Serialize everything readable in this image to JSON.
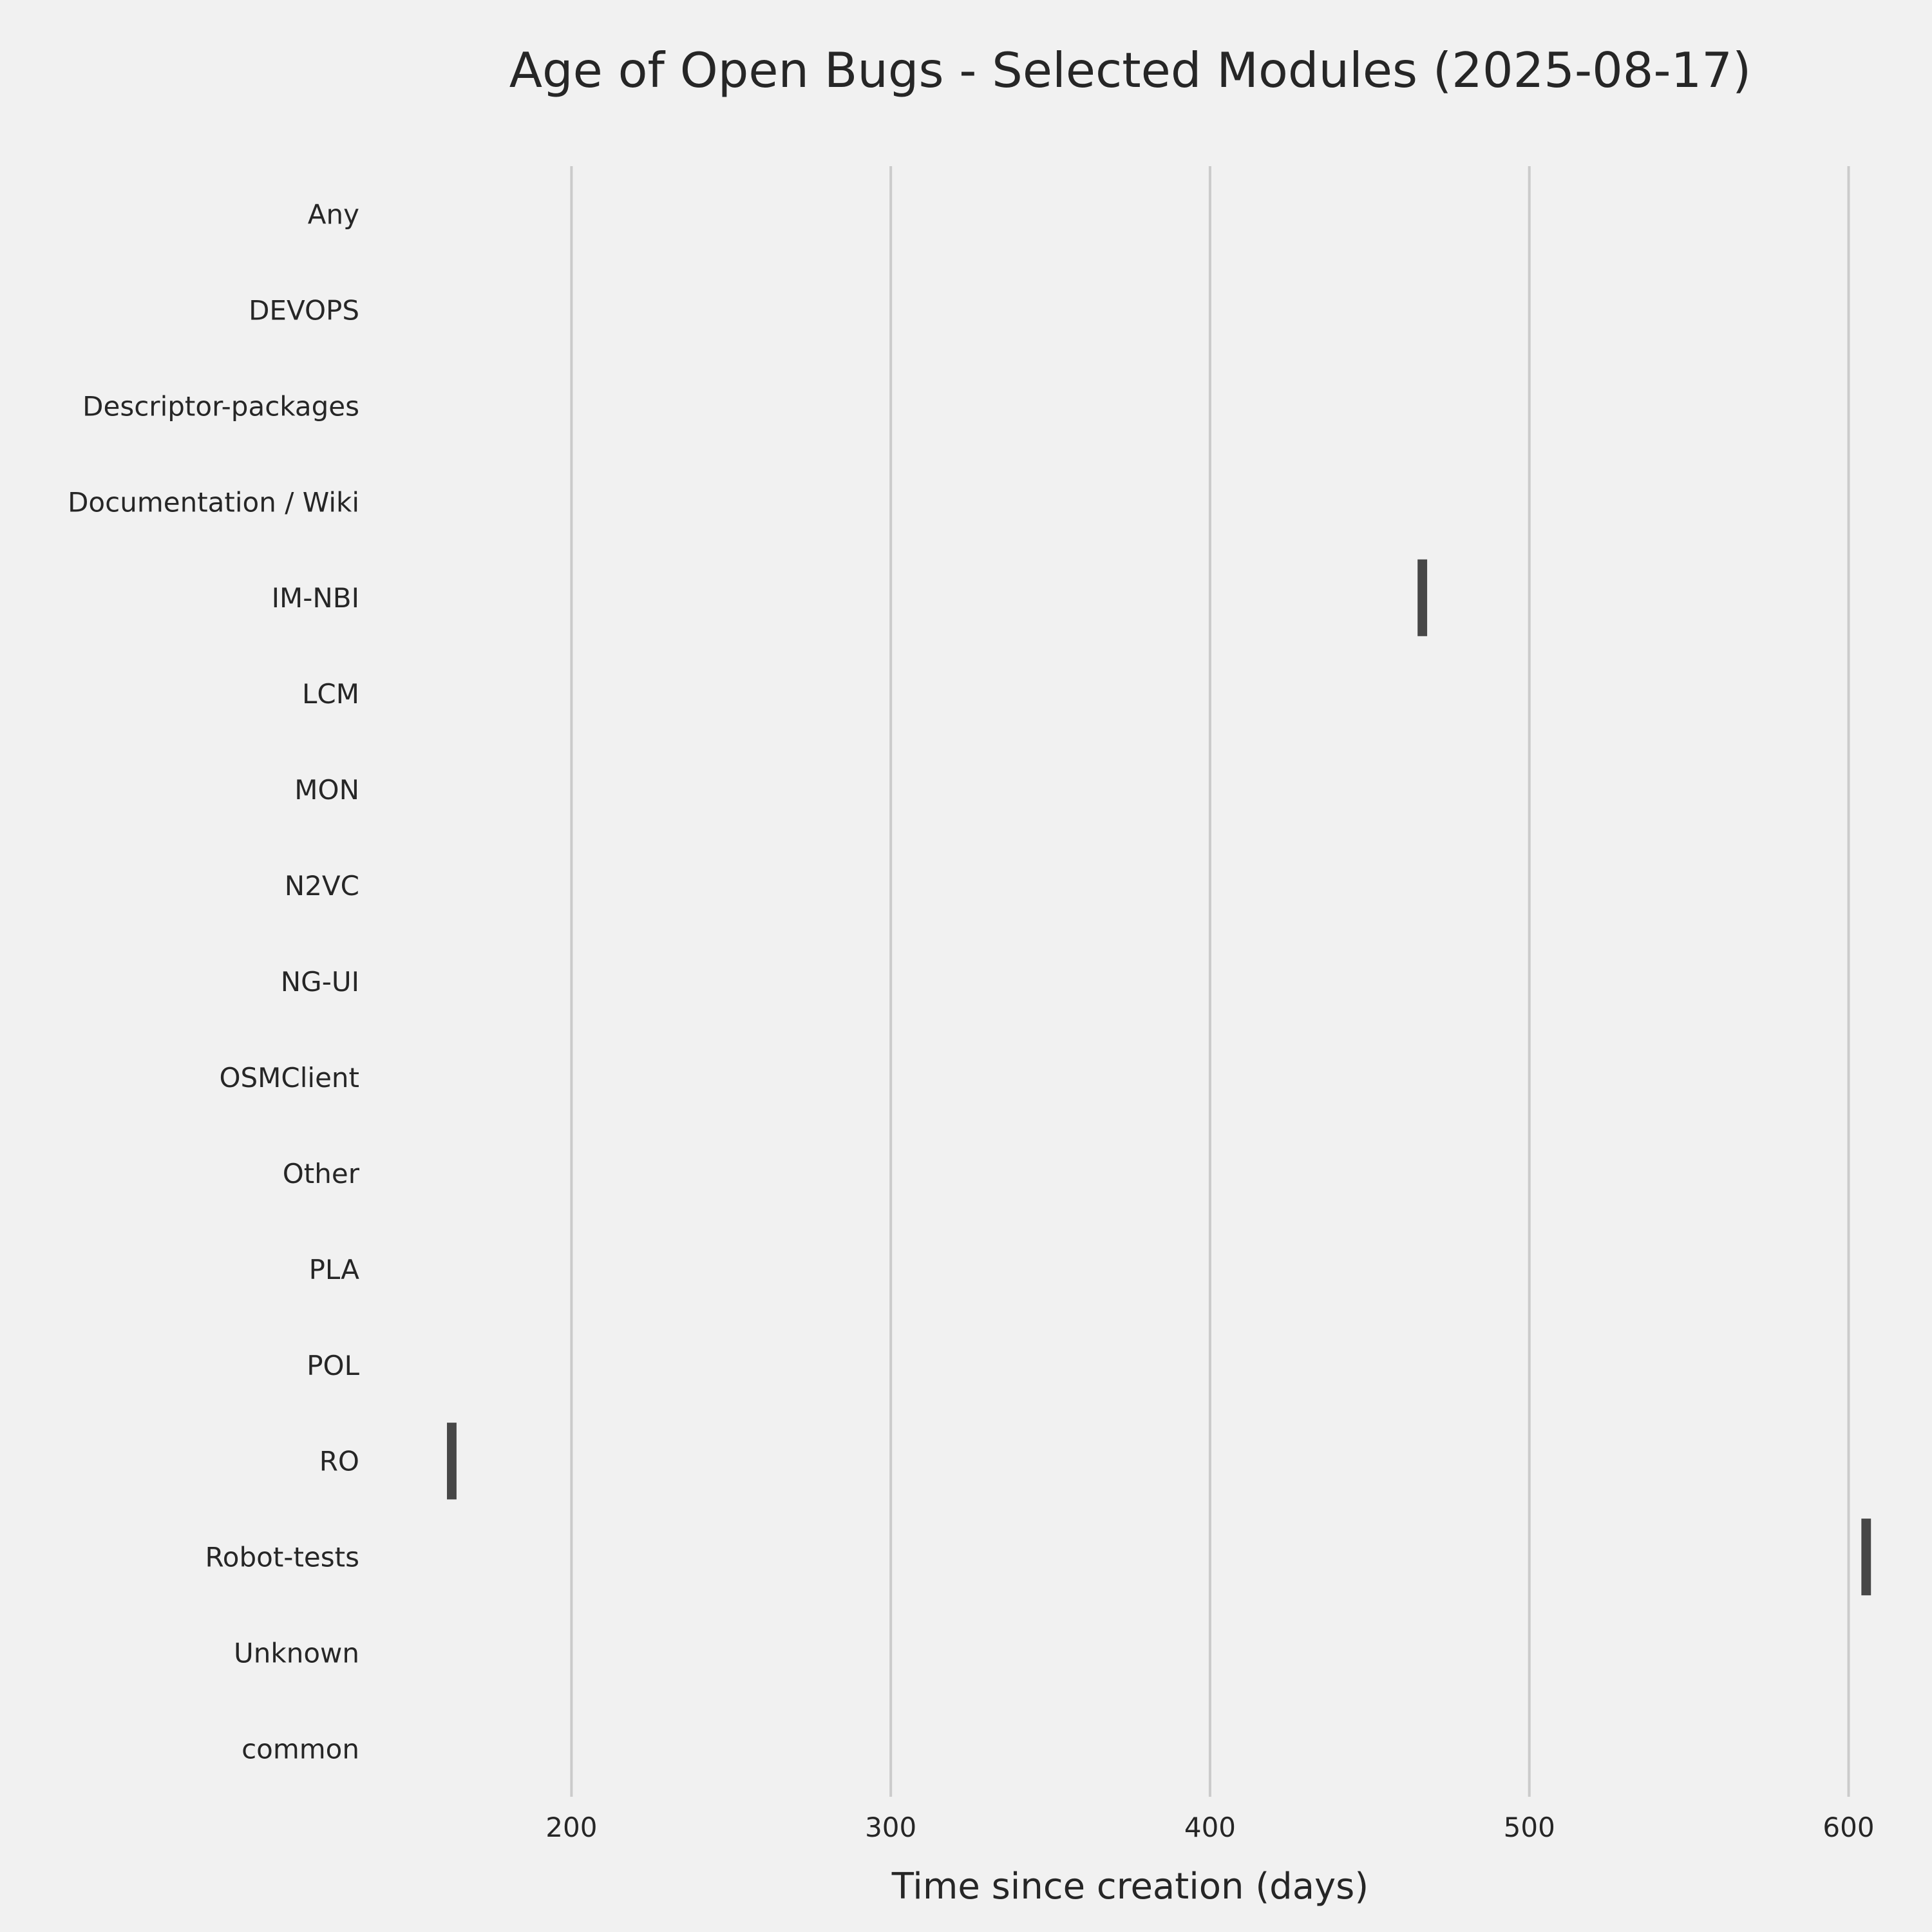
{
  "chart_data": {
    "type": "bar",
    "orientation": "horizontal",
    "title": "Age of Open Bugs - Selected Modules (2025-08-17)",
    "xlabel": "Time since creation (days)",
    "ylabel": "",
    "xlim": [
      138,
      612
    ],
    "xticks": [
      200,
      300,
      400,
      500,
      600
    ],
    "grid": "vertical",
    "bar_color": "#474747",
    "background_color": "#f1f1f1",
    "grid_color": "#cbcbcb",
    "categories": [
      "Any",
      "DEVOPS",
      "Descriptor-packages",
      "Documentation / Wiki",
      "IM-NBI",
      "LCM",
      "MON",
      "N2VC",
      "NG-UI",
      "OSMClient",
      "Other",
      "PLA",
      "POL",
      "RO",
      "Robot-tests",
      "Unknown",
      "common"
    ],
    "ranges": [
      null,
      null,
      null,
      null,
      [
        465,
        468
      ],
      null,
      null,
      null,
      null,
      null,
      null,
      null,
      null,
      [
        161,
        164
      ],
      [
        604,
        607
      ],
      null,
      null
    ]
  }
}
